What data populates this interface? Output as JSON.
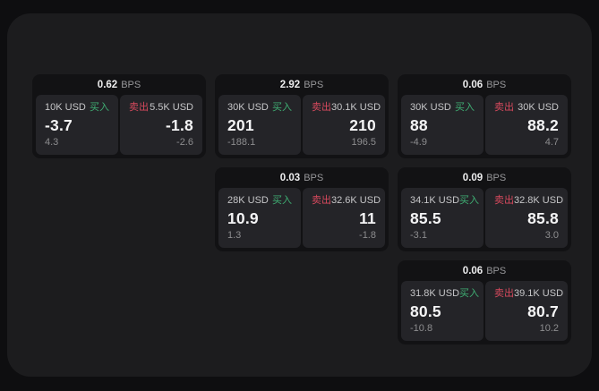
{
  "labels": {
    "buy": "买入",
    "sell": "卖出",
    "bps_unit": "BPS"
  },
  "colors": {
    "buy_green": "#3fae73",
    "sell_red": "#d6495d",
    "surface_bg": "#1c1c1e",
    "card_bg": "#121214",
    "panel_bg": "#242428"
  },
  "cards": [
    {
      "bps": "0.62",
      "buy": {
        "amount": "10K USD",
        "price": "-3.7",
        "change": "4.3"
      },
      "sell": {
        "amount": "5.5K USD",
        "price": "-1.8",
        "change": "-2.6"
      }
    },
    {
      "bps": "2.92",
      "buy": {
        "amount": "30K USD",
        "price": "201",
        "change": "-188.1"
      },
      "sell": {
        "amount": "30.1K USD",
        "price": "210",
        "change": "196.5"
      }
    },
    {
      "bps": "0.06",
      "buy": {
        "amount": "30K USD",
        "price": "88",
        "change": "-4.9"
      },
      "sell": {
        "amount": "30K USD",
        "price": "88.2",
        "change": "4.7"
      }
    },
    {
      "bps": "0.03",
      "buy": {
        "amount": "28K USD",
        "price": "10.9",
        "change": "1.3"
      },
      "sell": {
        "amount": "32.6K USD",
        "price": "11",
        "change": "-1.8"
      }
    },
    {
      "bps": "0.09",
      "buy": {
        "amount": "34.1K USD",
        "price": "85.5",
        "change": "-3.1"
      },
      "sell": {
        "amount": "32.8K USD",
        "price": "85.8",
        "change": "3.0"
      }
    },
    {
      "bps": "0.06",
      "buy": {
        "amount": "31.8K USD",
        "price": "80.5",
        "change": "-10.8"
      },
      "sell": {
        "amount": "39.1K USD",
        "price": "80.7",
        "change": "10.2"
      }
    }
  ]
}
